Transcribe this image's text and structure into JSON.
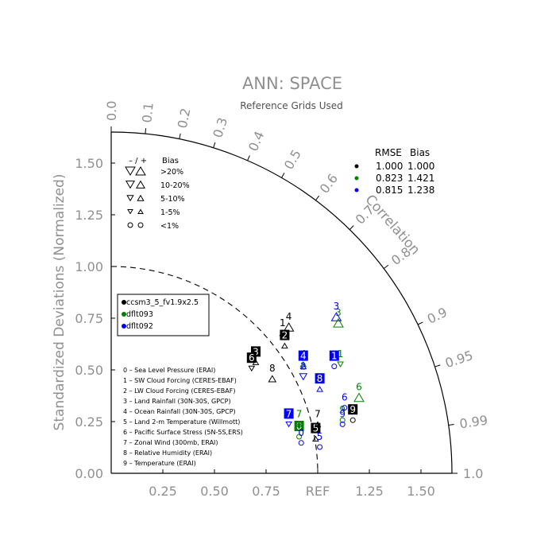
{
  "chart_data": {
    "type": "scatter",
    "subtype": "taylor-diagram",
    "title": "ANN: SPACE",
    "subtitle": "Reference Grids Used",
    "ylabel": "Standardized Deviations (Normalized)",
    "correlation_label": "Correlation",
    "ref_label": "REF",
    "xlim": [
      0,
      1.65
    ],
    "ylim": [
      0,
      1.65
    ],
    "x_ticks": [
      "0.25",
      "0.50",
      "0.75",
      "1.25",
      "1.50"
    ],
    "x_tick_values": [
      0.25,
      0.5,
      0.75,
      1.25,
      1.5
    ],
    "y_ticks": [
      "0.00",
      "0.25",
      "0.50",
      "0.75",
      "1.00",
      "1.25",
      "1.50"
    ],
    "y_tick_values": [
      0,
      0.25,
      0.5,
      0.75,
      1.0,
      1.25,
      1.5
    ],
    "corr_ticks": [
      "0.0",
      "0.1",
      "0.2",
      "0.3",
      "0.4",
      "0.5",
      "0.6",
      "0.7",
      "0.8",
      "0.9",
      "0.95",
      "0.99",
      "1.0"
    ],
    "corr_tick_values": [
      0.0,
      0.1,
      0.2,
      0.3,
      0.4,
      0.5,
      0.6,
      0.7,
      0.8,
      0.9,
      0.95,
      0.99,
      1.0
    ],
    "bias_legend": {
      "header": [
        "– / +",
        "Bias"
      ],
      "rows": [
        ">20%",
        "10-20%",
        "5-10%",
        "1-5%",
        "<1%"
      ]
    },
    "rmse_table": {
      "header": [
        "RMSE",
        "Bias"
      ],
      "rows": [
        {
          "color": "#000000",
          "rmse": "1.000",
          "bias": "1.000"
        },
        {
          "color": "#008000",
          "rmse": "0.823",
          "bias": "1.421"
        },
        {
          "color": "#0000ff",
          "rmse": "0.815",
          "bias": "1.238"
        }
      ]
    },
    "case_legend": [
      {
        "name": "ccsm3_5_fv1.9x2.5",
        "color": "#000000"
      },
      {
        "name": "dflt093",
        "color": "#008000"
      },
      {
        "name": "dflt092",
        "color": "#0000ff"
      }
    ],
    "variables": [
      "0 – Sea Level Pressure (ERAI)",
      "1 – SW Cloud Forcing (CERES-EBAF)",
      "2 – LW Cloud Forcing (CERES-EBAF)",
      "3 – Land Rainfall (30N-30S, GPCP)",
      "4 – Ocean Rainfall (30N-30S, GPCP)",
      "5 – Land 2-m Temperature (Willmott)",
      "6 – Pacific Surface Stress (5N-5S,ERS)",
      "7 – Zonal Wind (300mb, ERAI)",
      "8 – Relative Humidity (ERAI)",
      "9 – Temperature (ERAI)"
    ],
    "series": [
      {
        "name": "ccsm3_5_fv1.9x2.5",
        "color": "#000000",
        "points": [
          {
            "id": "1",
            "x": 0.83,
            "y": 0.7,
            "bias": "1-5% up",
            "boxed": false
          },
          {
            "id": "2",
            "x": 0.84,
            "y": 0.64,
            "bias": "1-5% up",
            "boxed": true
          },
          {
            "id": "3",
            "x": 0.7,
            "y": 0.56,
            "bias": "1-5% up",
            "boxed": true
          },
          {
            "id": "4",
            "x": 0.86,
            "y": 0.73,
            "bias": "10-20% up",
            "boxed": false
          },
          {
            "id": "5",
            "x": 0.99,
            "y": 0.19,
            "bias": "1-5% up",
            "boxed": true
          },
          {
            "id": "6",
            "x": 0.68,
            "y": 0.53,
            "bias": "1-5% down",
            "boxed": true
          },
          {
            "id": "7",
            "x": 1.0,
            "y": 0.26,
            "bias": "1-5% up",
            "boxed": false
          },
          {
            "id": "8",
            "x": 0.78,
            "y": 0.48,
            "bias": "5-10% up",
            "boxed": false
          },
          {
            "id": "9",
            "x": 1.17,
            "y": 0.28,
            "bias": "<1%",
            "boxed": true
          }
        ]
      },
      {
        "name": "dflt093",
        "color": "#008000",
        "points": [
          {
            "id": "0",
            "x": 0.91,
            "y": 0.2,
            "bias": "<1%",
            "boxed": true
          },
          {
            "id": "1",
            "x": 1.11,
            "y": 0.55,
            "bias": "1-5% down",
            "boxed": false
          },
          {
            "id": "3",
            "x": 1.1,
            "y": 0.75,
            "bias": "10-20% up",
            "boxed": false
          },
          {
            "id": "4",
            "x": 0.93,
            "y": 0.55,
            "bias": "1-5% up",
            "boxed": false
          },
          {
            "id": "6",
            "x": 1.2,
            "y": 0.39,
            "bias": "10-20% up",
            "boxed": false
          },
          {
            "id": "7",
            "x": 0.91,
            "y": 0.26,
            "bias": "1-5% up",
            "boxed": false
          },
          {
            "id": "9",
            "x": 1.12,
            "y": 0.28,
            "bias": "<1%",
            "boxed": false
          }
        ]
      },
      {
        "name": "dflt092",
        "color": "#0000ff",
        "points": [
          {
            "id": "0",
            "x": 0.92,
            "y": 0.17,
            "bias": "<1%",
            "boxed": false
          },
          {
            "id": "1",
            "x": 1.08,
            "y": 0.54,
            "bias": "<1%",
            "boxed": true
          },
          {
            "id": "2",
            "x": 0.93,
            "y": 0.49,
            "bias": "5-10% down",
            "boxed": false
          },
          {
            "id": "3",
            "x": 1.09,
            "y": 0.78,
            "bias": "10-20% up",
            "boxed": false
          },
          {
            "id": "4",
            "x": 0.93,
            "y": 0.54,
            "bias": "1-5% up",
            "boxed": true
          },
          {
            "id": "5",
            "x": 1.01,
            "y": 0.15,
            "bias": "<1%",
            "boxed": false
          },
          {
            "id": "6",
            "x": 1.13,
            "y": 0.34,
            "bias": "<1%",
            "boxed": false
          },
          {
            "id": "7",
            "x": 0.86,
            "y": 0.26,
            "bias": "1-5% down",
            "boxed": true
          },
          {
            "id": "8",
            "x": 1.01,
            "y": 0.43,
            "bias": "1-5% up",
            "boxed": true
          },
          {
            "id": "9",
            "x": 1.12,
            "y": 0.26,
            "bias": "<1%",
            "boxed": false
          }
        ]
      }
    ]
  }
}
